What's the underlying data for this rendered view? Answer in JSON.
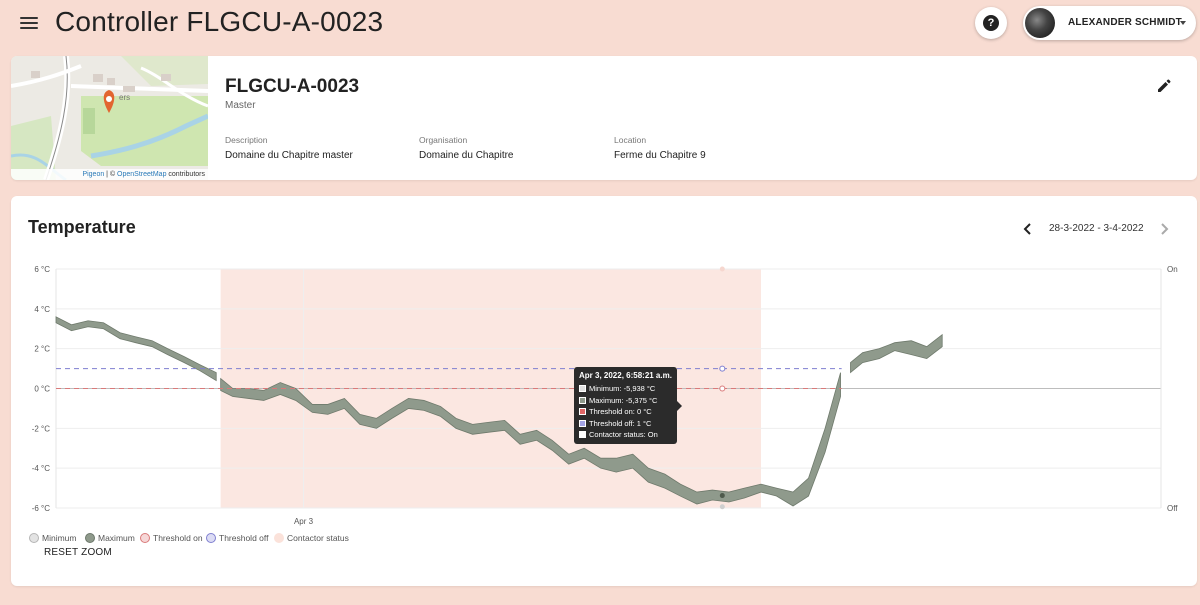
{
  "header": {
    "title": "Controller FLGCU-A-0023",
    "help_label": "?",
    "user_name": "ALEXANDER SCHMIDT"
  },
  "device": {
    "name": "FLGCU-A-0023",
    "role": "Master",
    "fields": [
      {
        "label": "Description",
        "value": "Domaine du Chapitre master"
      },
      {
        "label": "Organisation",
        "value": "Domaine du Chapitre"
      },
      {
        "label": "Location",
        "value": "Ferme du Chapitre 9"
      }
    ],
    "map_credit": {
      "pigeon": "Pigeon",
      "sep": " | © ",
      "osm": "OpenStreetMap",
      "contributors": " contributors"
    },
    "map_label": "ers"
  },
  "temperature_card": {
    "title": "Temperature",
    "date_range": "28-3-2022 - 3-4-2022",
    "reset_zoom": "RESET ZOOM",
    "legend": [
      {
        "name": "Minimum",
        "color": "#d9d9d9",
        "border": "#b5b5b5"
      },
      {
        "name": "Maximum",
        "color": "#8f9a8c",
        "border": "#6c776a"
      },
      {
        "name": "Threshold on",
        "color": "#f6d7d7",
        "border": "#d97a7a"
      },
      {
        "name": "Threshold off",
        "color": "#dcdcf4",
        "border": "#7f7fd0"
      },
      {
        "name": "Contactor status",
        "color": "#fbe2da",
        "border": "#fbe2da"
      }
    ],
    "tooltip": {
      "title": "Apr 3, 2022, 6:58:21 a.m.",
      "rows": [
        {
          "text": "Minimum: -5,938 °C",
          "swatch": "#e0e0e0"
        },
        {
          "text": "Maximum: -5,375 °C",
          "swatch": "#8f9a8c"
        },
        {
          "text": "Threshold on: 0 °C",
          "swatch": "#e06666"
        },
        {
          "text": "Threshold off: 1 °C",
          "swatch": "#a4a4e6"
        },
        {
          "text": "Contactor status: On",
          "swatch": "#ffffff"
        }
      ]
    }
  },
  "chart_data": {
    "type": "area",
    "x_tick_labels": [
      "Apr 3"
    ],
    "y_tick_labels": [
      "6 °C",
      "4 °C",
      "2 °C",
      "0 °C",
      "-2 °C",
      "-4 °C",
      "-6 °C"
    ],
    "y_right_labels": [
      "On",
      "Off"
    ],
    "ylim": [
      -6,
      6
    ],
    "threshold_on": 0,
    "threshold_off": 1,
    "band_segments": [
      {
        "t": [
          0,
          0.014,
          0.029,
          0.043,
          0.058,
          0.072,
          0.087,
          0.101,
          0.116,
          0.13,
          0.145
        ],
        "max": [
          3.6,
          3.2,
          3.4,
          3.3,
          2.8,
          2.6,
          2.4,
          2.0,
          1.6,
          1.2,
          0.8
        ],
        "min": [
          3.3,
          2.9,
          3.1,
          3.0,
          2.5,
          2.3,
          2.1,
          1.7,
          1.3,
          0.9,
          0.4
        ]
      },
      {
        "t": [
          0.149,
          0.16,
          0.174,
          0.188,
          0.203,
          0.217,
          0.232,
          0.246,
          0.261,
          0.275,
          0.29,
          0.304,
          0.319,
          0.333,
          0.348,
          0.362,
          0.377,
          0.391,
          0.406,
          0.42,
          0.435,
          0.449,
          0.464,
          0.478,
          0.493,
          0.507,
          0.522,
          0.536,
          0.551,
          0.565,
          0.58,
          0.594,
          0.609,
          0.623,
          0.638,
          0.652,
          0.667,
          0.681,
          0.696,
          0.71
        ],
        "max": [
          0.5,
          0.0,
          0.0,
          -0.1,
          0.3,
          0.0,
          -0.8,
          -0.8,
          -0.5,
          -1.3,
          -1.5,
          -1.0,
          -0.5,
          -0.6,
          -0.9,
          -1.5,
          -1.8,
          -1.7,
          -1.6,
          -2.3,
          -2.1,
          -2.6,
          -3.3,
          -3.0,
          -3.5,
          -3.5,
          -3.3,
          -4.0,
          -4.3,
          -4.8,
          -5.2,
          -5.1,
          -5.2,
          -5.0,
          -4.8,
          -5.0,
          -5.2,
          -4.5,
          -2.0,
          0.8
        ],
        "min": [
          -0.1,
          -0.4,
          -0.5,
          -0.6,
          -0.3,
          -0.6,
          -1.2,
          -1.3,
          -1.0,
          -1.8,
          -2.0,
          -1.5,
          -1.0,
          -1.1,
          -1.4,
          -2.0,
          -2.3,
          -2.2,
          -2.1,
          -2.8,
          -2.6,
          -3.1,
          -3.8,
          -3.5,
          -4.0,
          -4.2,
          -4.0,
          -4.7,
          -5.0,
          -5.4,
          -5.8,
          -5.6,
          -5.7,
          -5.5,
          -5.2,
          -5.4,
          -5.9,
          -5.4,
          -3.2,
          -0.4
        ]
      },
      {
        "t": [
          0.719,
          0.73,
          0.745,
          0.759,
          0.774,
          0.788,
          0.802
        ],
        "max": [
          1.3,
          1.8,
          2.0,
          2.3,
          2.4,
          2.1,
          2.7
        ],
        "min": [
          0.8,
          1.3,
          1.5,
          1.9,
          1.7,
          1.5,
          2.1
        ]
      }
    ],
    "contactor_on_range": [
      0.149,
      0.638
    ],
    "tooltip_point_t": 0.603
  }
}
